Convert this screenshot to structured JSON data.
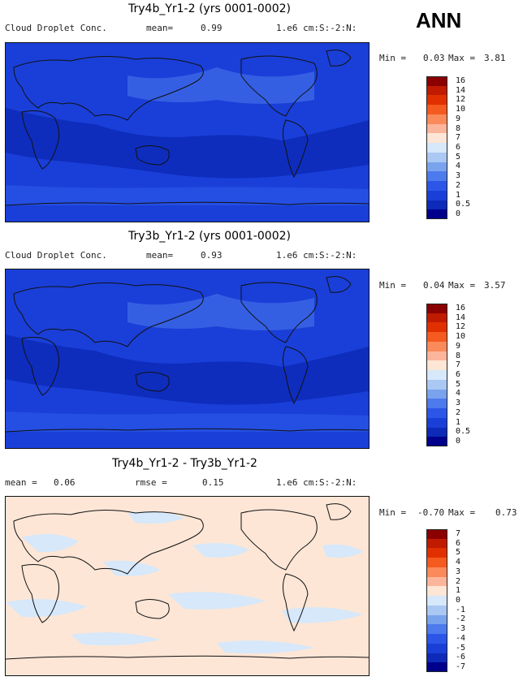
{
  "season": "ANN",
  "panels": [
    {
      "title": "Try4b_Yr1-2 (yrs 0001-0002)",
      "variable": "Cloud Droplet Conc.",
      "mean_label": "mean=",
      "mean_value": "0.99",
      "units": "1.e6 cm:S:-2:N:",
      "min_label": "Min =",
      "min_value": "0.03",
      "max_label": "Max =",
      "max_value": "3.81",
      "bg": "#1a3fd8",
      "colorbar": {
        "colors": [
          "#8b0000",
          "#c01b00",
          "#e03000",
          "#f55a1e",
          "#fa8a5a",
          "#fbb59a",
          "#fde6d6",
          "#d6e8fa",
          "#aac8f3",
          "#7aa3ee",
          "#4d7aec",
          "#2b56e8",
          "#1a3fd8",
          "#0d2ab8",
          "#00008c"
        ],
        "labels": [
          "16",
          "14",
          "12",
          "10",
          "9",
          "8",
          "7",
          "6",
          "5",
          "4",
          "3",
          "2",
          "1",
          "0.5",
          "0"
        ]
      }
    },
    {
      "title": "Try3b_Yr1-2 (yrs 0001-0002)",
      "variable": "Cloud Droplet Conc.",
      "mean_label": "mean=",
      "mean_value": "0.93",
      "units": "1.e6 cm:S:-2:N:",
      "min_label": "Min =",
      "min_value": "0.04",
      "max_label": "Max =",
      "max_value": "3.57",
      "bg": "#1a3fd8",
      "colorbar": {
        "colors": [
          "#8b0000",
          "#c01b00",
          "#e03000",
          "#f55a1e",
          "#fa8a5a",
          "#fbb59a",
          "#fde6d6",
          "#d6e8fa",
          "#aac8f3",
          "#7aa3ee",
          "#4d7aec",
          "#2b56e8",
          "#1a3fd8",
          "#0d2ab8",
          "#00008c"
        ],
        "labels": [
          "16",
          "14",
          "12",
          "10",
          "9",
          "8",
          "7",
          "6",
          "5",
          "4",
          "3",
          "2",
          "1",
          "0.5",
          "0"
        ]
      }
    },
    {
      "title": "Try4b_Yr1-2 - Try3b_Yr1-2",
      "mean_label": "mean =",
      "mean_value": "0.06",
      "rmse_label": "rmse =",
      "rmse_value": "0.15",
      "units": "1.e6 cm:S:-2:N:",
      "min_label": "Min =",
      "min_value": "-0.70",
      "max_label": "Max =",
      "max_value": "0.73",
      "bg": "#fde6d6",
      "colorbar": {
        "colors": [
          "#8b0000",
          "#c01b00",
          "#e03000",
          "#f55a1e",
          "#fa8a5a",
          "#fbb59a",
          "#fde6d6",
          "#d6e8fa",
          "#aac8f3",
          "#7aa3ee",
          "#4d7aec",
          "#2b56e8",
          "#1a3fd8",
          "#0d2ab8",
          "#00008c"
        ],
        "labels": [
          "7",
          "6",
          "5",
          "4",
          "3",
          "2",
          "1",
          "0",
          "-1",
          "-2",
          "-3",
          "-4",
          "-5",
          "-6",
          "-7"
        ]
      }
    }
  ]
}
